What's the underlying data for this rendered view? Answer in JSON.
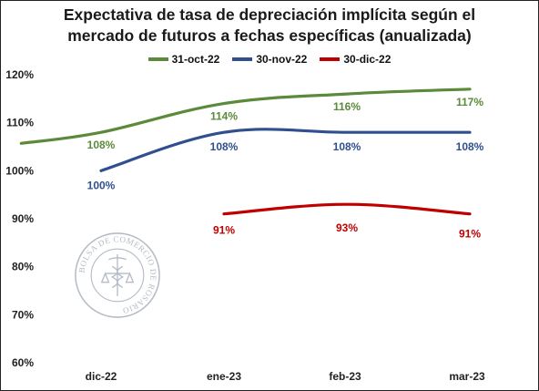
{
  "chart_data": {
    "type": "line",
    "title": [
      "Expectativa de tasa de depreciación implícita según el",
      "mercado de futuros a fechas específicas (anualizada)"
    ],
    "categories": [
      "dic-22",
      "ene-23",
      "feb-23",
      "mar-23"
    ],
    "y_ticks": [
      "60%",
      "70%",
      "80%",
      "90%",
      "100%",
      "110%",
      "120%"
    ],
    "ylim": [
      60,
      120
    ],
    "legend_position": "top",
    "series": [
      {
        "name": "31-oct-22",
        "color": "#5a8a3a",
        "start_x": -0.65,
        "points": [
          [
            -0.65,
            105.7
          ],
          [
            0,
            108
          ],
          [
            1,
            114
          ],
          [
            2,
            116
          ],
          [
            3,
            117
          ]
        ],
        "labels": [
          "108%",
          "114%",
          "116%",
          "117%"
        ]
      },
      {
        "name": "30-nov-22",
        "color": "#2f4f8f",
        "points": [
          [
            0,
            100
          ],
          [
            1,
            108
          ],
          [
            2,
            108
          ],
          [
            3,
            108
          ]
        ],
        "labels": [
          "100%",
          "108%",
          "108%",
          "108%"
        ]
      },
      {
        "name": "30-dic-22",
        "color": "#c00000",
        "points": [
          [
            1,
            91
          ],
          [
            2,
            93
          ],
          [
            3,
            91
          ]
        ],
        "labels": [
          "91%",
          "93%",
          "91%"
        ]
      }
    ]
  },
  "watermark": {
    "text": "BOLSA DE COMERCIO DE ROSARIO",
    "icon": "caduceus-icon",
    "color": "#b5bcc6"
  }
}
